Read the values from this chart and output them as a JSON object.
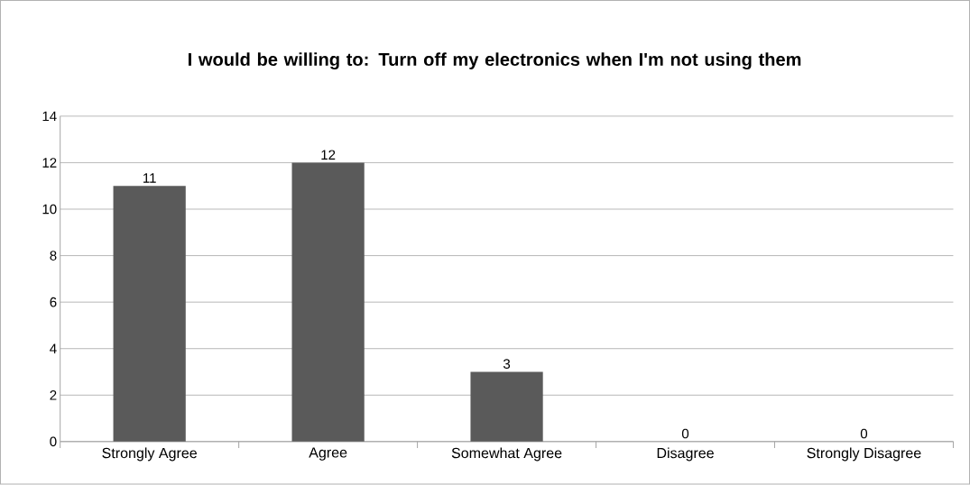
{
  "chart_data": {
    "type": "bar",
    "title": "I would be willing to: Turn off my electronics when I'm not using them",
    "categories": [
      "Strongly Agree",
      "Agree",
      "Somewhat Agree",
      "Disagree",
      "Strongly Disagree"
    ],
    "values": [
      11,
      12,
      3,
      0,
      0
    ],
    "color": "#5a5a5a",
    "ylim": [
      0,
      14
    ],
    "yticks": [
      0,
      2,
      4,
      6,
      8,
      10,
      12,
      14
    ],
    "grid": "y",
    "data_labels": true
  }
}
